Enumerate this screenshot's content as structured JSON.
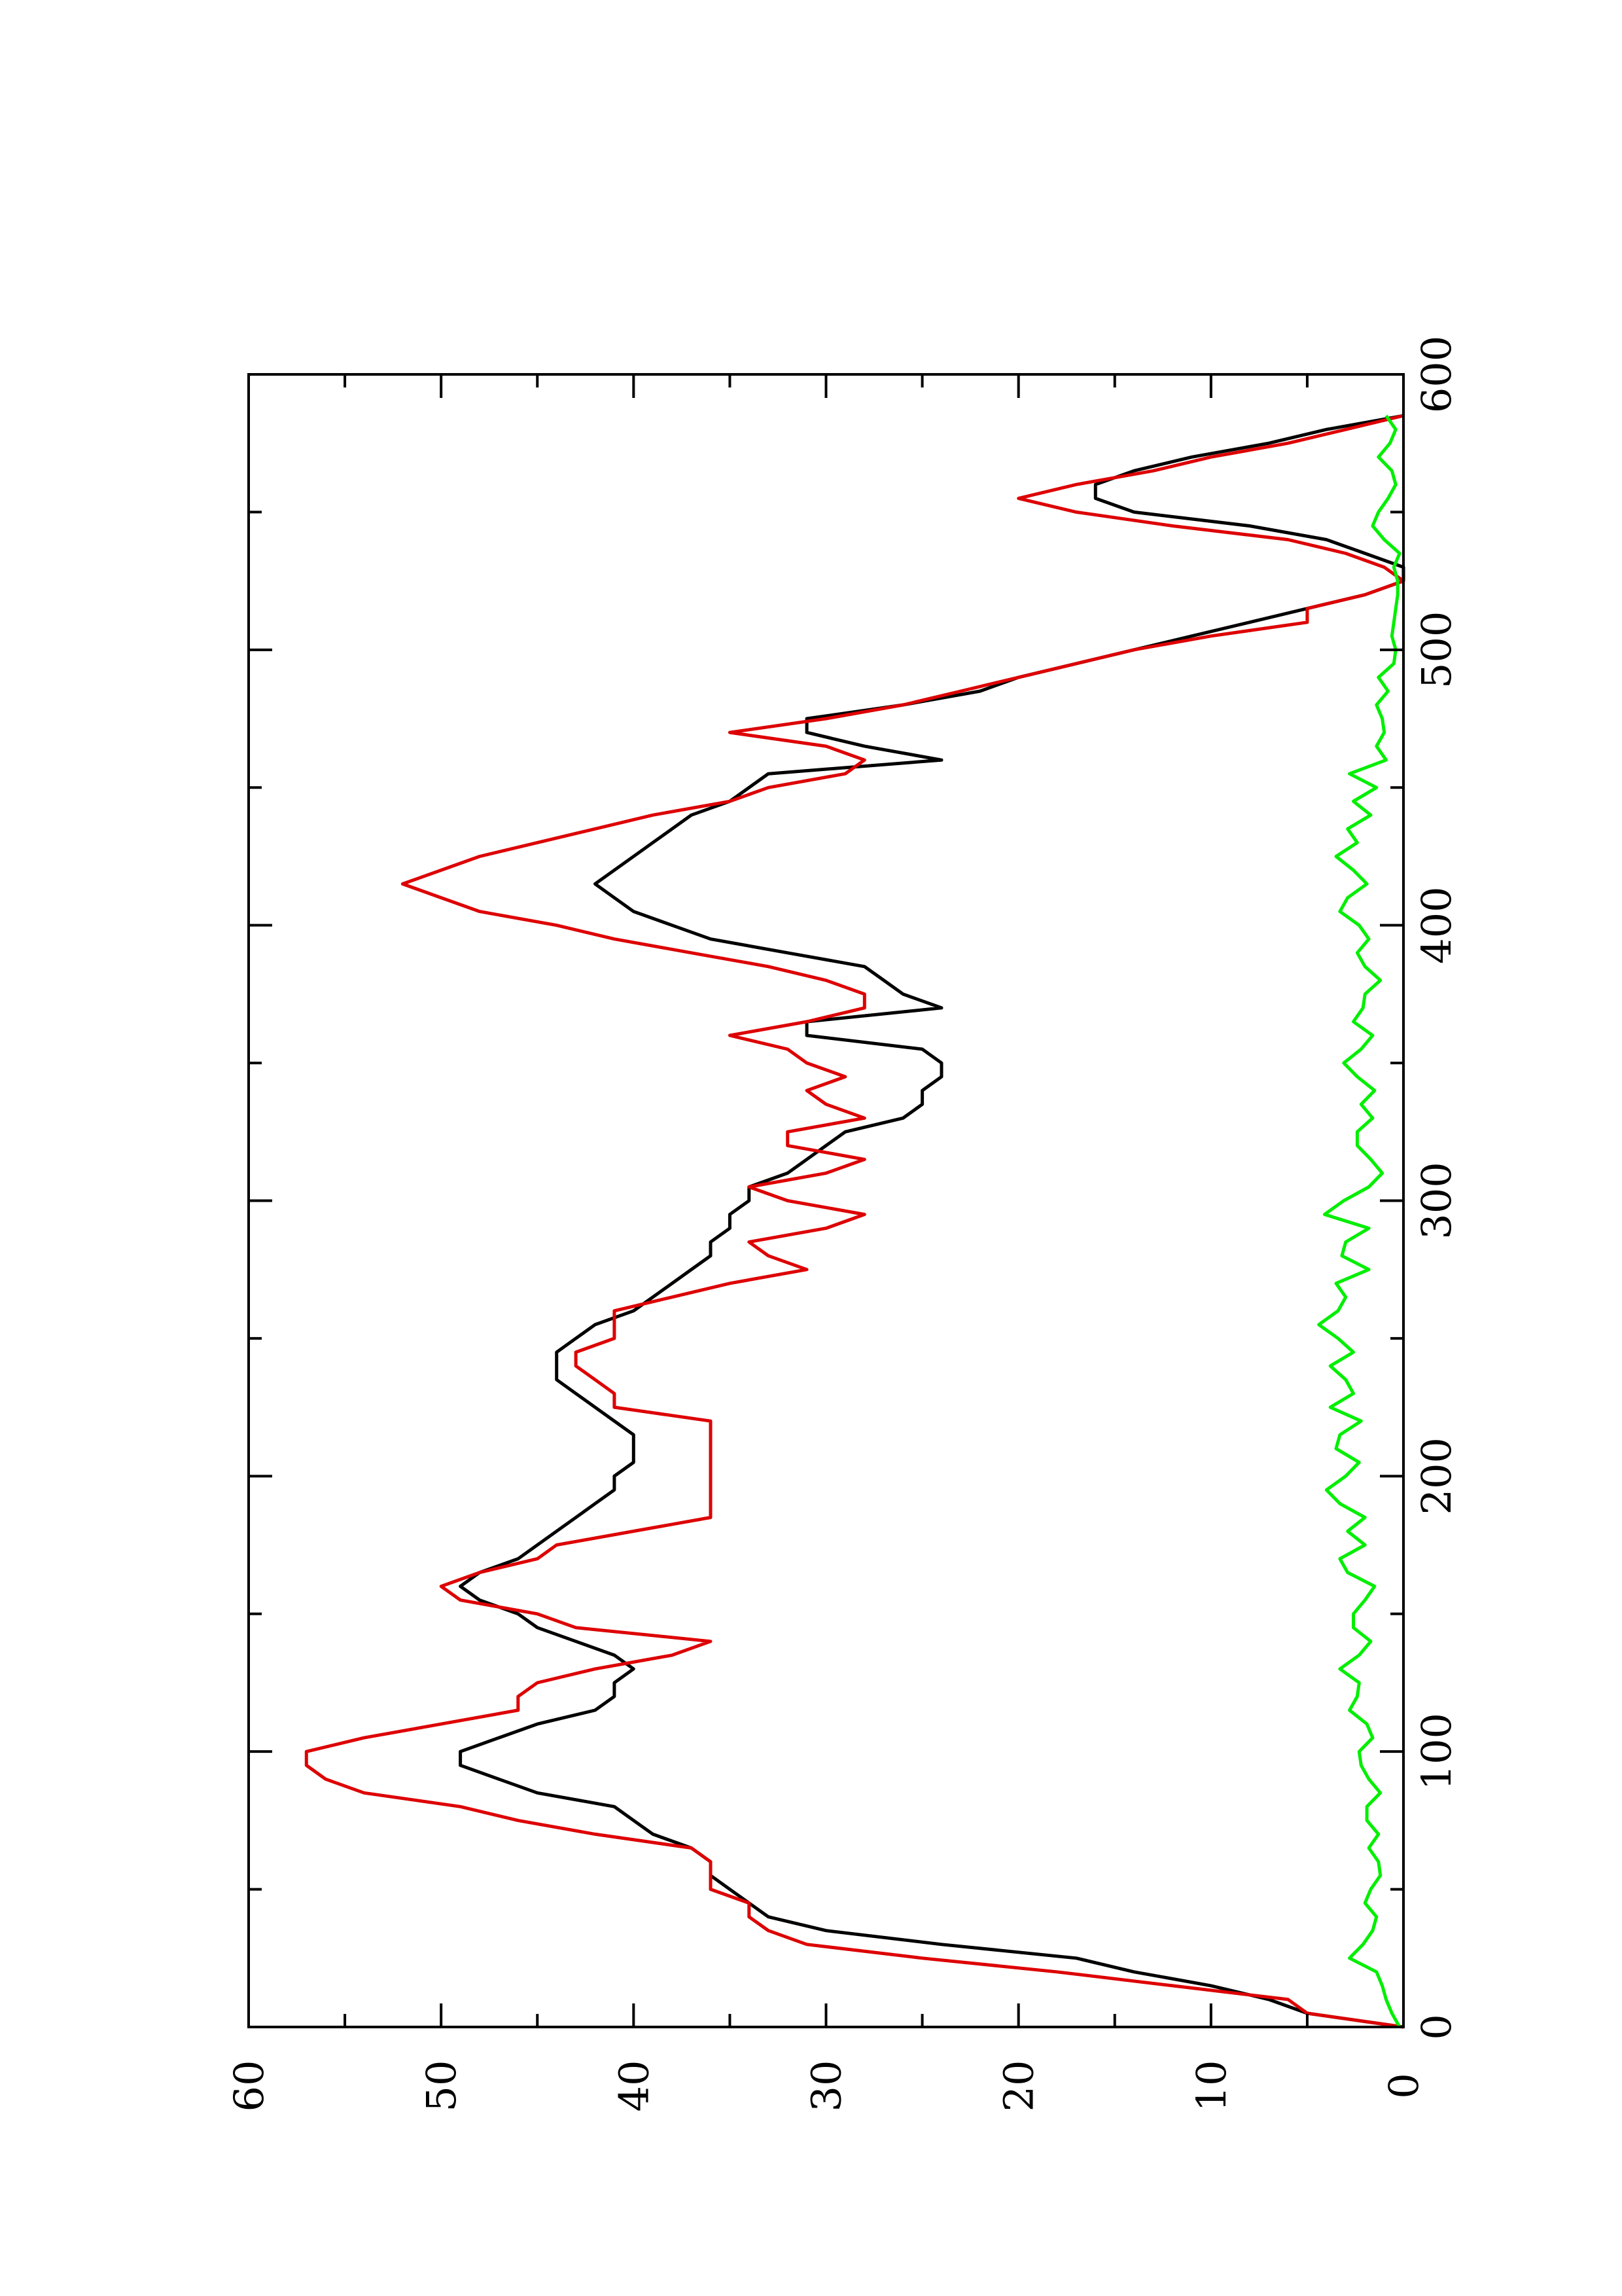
{
  "chart_data": {
    "type": "line",
    "title": "",
    "xlabel": "",
    "ylabel": "",
    "orientation": "rotated-90-ccw",
    "xlim": [
      0,
      600
    ],
    "ylim": [
      0,
      60
    ],
    "x_ticks": [
      0,
      100,
      200,
      300,
      400,
      500,
      600
    ],
    "x_tick_labels": [
      "0",
      "100",
      "200",
      "300",
      "400",
      "500",
      "600"
    ],
    "x_minor_ticks": [
      50,
      150,
      250,
      350,
      450,
      550
    ],
    "y_ticks": [
      0,
      10,
      20,
      30,
      40,
      50,
      60
    ],
    "y_tick_labels": [
      "0",
      "10",
      "20",
      "30",
      "40",
      "50",
      "60"
    ],
    "y_minor_ticks": [
      5,
      15,
      25,
      35,
      45,
      55
    ],
    "grid": false,
    "legend": "none",
    "series": [
      {
        "color": "#000000",
        "x": [
          0,
          5,
          10,
          15,
          20,
          25,
          30,
          35,
          40,
          45,
          50,
          55,
          60,
          65,
          70,
          75,
          80,
          85,
          90,
          95,
          100,
          105,
          110,
          115,
          120,
          125,
          130,
          135,
          140,
          145,
          150,
          155,
          160,
          165,
          170,
          175,
          180,
          185,
          190,
          195,
          200,
          205,
          210,
          215,
          220,
          225,
          230,
          235,
          240,
          245,
          250,
          255,
          260,
          265,
          270,
          275,
          280,
          285,
          290,
          295,
          300,
          305,
          310,
          315,
          320,
          325,
          330,
          335,
          340,
          345,
          350,
          355,
          360,
          365,
          370,
          375,
          380,
          385,
          390,
          395,
          400,
          405,
          410,
          415,
          420,
          425,
          430,
          435,
          440,
          445,
          450,
          455,
          460,
          465,
          470,
          475,
          480,
          485,
          490,
          495,
          500,
          505,
          510,
          515,
          520,
          525,
          530,
          535,
          540,
          545,
          550,
          555,
          560,
          565,
          570,
          575,
          580,
          585
        ],
        "y": [
          0,
          5,
          7,
          10,
          14,
          17,
          24,
          30,
          33,
          34,
          35,
          36,
          36,
          37,
          39,
          40,
          41,
          45,
          47,
          49,
          49,
          47,
          45,
          42,
          41,
          41,
          40,
          41,
          43,
          45,
          46,
          48,
          49,
          48,
          46,
          45,
          44,
          43,
          42,
          41,
          41,
          40,
          40,
          40,
          41,
          42,
          43,
          44,
          44,
          44,
          43,
          42,
          40,
          39,
          38,
          37,
          36,
          36,
          35,
          35,
          34,
          34,
          32,
          31,
          30,
          29,
          26,
          25,
          25,
          24,
          24,
          25,
          31,
          31,
          24,
          26,
          27,
          28,
          32,
          36,
          38,
          40,
          41,
          42,
          41,
          40,
          39,
          38,
          37,
          35,
          34,
          33,
          24,
          28,
          31,
          31,
          26,
          22,
          20,
          17,
          14,
          11,
          8,
          5,
          2,
          0,
          0,
          2,
          4,
          8,
          14,
          16,
          16,
          14,
          11,
          7,
          4,
          0
        ]
      },
      {
        "color": "#dd0000",
        "x": [
          0,
          5,
          10,
          15,
          20,
          25,
          30,
          35,
          40,
          45,
          50,
          55,
          60,
          65,
          70,
          75,
          80,
          85,
          90,
          95,
          100,
          105,
          110,
          115,
          120,
          125,
          130,
          135,
          140,
          145,
          150,
          155,
          160,
          165,
          170,
          175,
          180,
          185,
          190,
          195,
          200,
          205,
          210,
          215,
          220,
          225,
          230,
          235,
          240,
          245,
          250,
          255,
          260,
          265,
          270,
          275,
          280,
          285,
          290,
          295,
          300,
          305,
          310,
          315,
          320,
          325,
          330,
          335,
          340,
          345,
          350,
          355,
          360,
          365,
          370,
          375,
          380,
          385,
          390,
          395,
          400,
          405,
          410,
          415,
          420,
          425,
          430,
          435,
          440,
          445,
          450,
          455,
          460,
          465,
          470,
          475,
          480,
          485,
          490,
          495,
          500,
          505,
          510,
          515,
          520,
          525,
          530,
          535,
          540,
          545,
          550,
          555,
          560,
          565,
          570,
          575,
          580,
          585
        ],
        "y": [
          0,
          5,
          6,
          12,
          18,
          25,
          31,
          33,
          34,
          34,
          36,
          36,
          36,
          37,
          42,
          46,
          49,
          54,
          56,
          57,
          57,
          54,
          50,
          46,
          46,
          45,
          42,
          38,
          36,
          43,
          45,
          49,
          50,
          48,
          45,
          44,
          40,
          36,
          36,
          36,
          36,
          36,
          36,
          36,
          36,
          41,
          41,
          42,
          43,
          43,
          41,
          41,
          41,
          38,
          35,
          31,
          33,
          34,
          30,
          28,
          32,
          34,
          30,
          28,
          32,
          32,
          28,
          30,
          31,
          29,
          31,
          32,
          35,
          31,
          28,
          28,
          30,
          33,
          37,
          41,
          44,
          48,
          50,
          52,
          50,
          48,
          45,
          42,
          39,
          35,
          33,
          29,
          28,
          30,
          35,
          30,
          26,
          23,
          20,
          17,
          14,
          10,
          5,
          5,
          2,
          0,
          1,
          3,
          6,
          12,
          17,
          20,
          17,
          13,
          10,
          6,
          3,
          0
        ]
      },
      {
        "color": "#00ee00",
        "x": [
          0,
          5,
          10,
          15,
          20,
          25,
          30,
          35,
          40,
          45,
          50,
          55,
          60,
          65,
          70,
          75,
          80,
          85,
          90,
          95,
          100,
          105,
          110,
          115,
          120,
          125,
          130,
          135,
          140,
          145,
          150,
          155,
          160,
          165,
          170,
          175,
          180,
          185,
          190,
          195,
          200,
          205,
          210,
          215,
          220,
          225,
          230,
          235,
          240,
          245,
          250,
          255,
          260,
          265,
          270,
          275,
          280,
          285,
          290,
          295,
          300,
          305,
          310,
          315,
          320,
          325,
          330,
          335,
          340,
          345,
          350,
          355,
          360,
          365,
          370,
          375,
          380,
          385,
          390,
          395,
          400,
          405,
          410,
          415,
          420,
          425,
          430,
          435,
          440,
          445,
          450,
          455,
          460,
          465,
          470,
          475,
          480,
          485,
          490,
          495,
          500,
          505,
          510,
          515,
          520,
          525,
          530,
          535,
          540,
          545,
          550,
          555,
          560,
          565,
          570,
          575,
          580,
          585
        ],
        "y": [
          0.2,
          0.6,
          0.9,
          1.1,
          1.4,
          2.8,
          2.1,
          1.6,
          1.4,
          2.0,
          1.7,
          1.2,
          1.3,
          1.8,
          1.3,
          1.9,
          1.9,
          1.2,
          1.8,
          2.2,
          2.3,
          1.6,
          1.9,
          2.8,
          2.4,
          2.3,
          3.3,
          2.3,
          1.7,
          2.6,
          2.6,
          2.0,
          1.5,
          2.9,
          3.3,
          2.0,
          2.9,
          2.0,
          3.3,
          4.0,
          3.0,
          2.3,
          3.5,
          3.3,
          2.2,
          3.8,
          2.6,
          3.0,
          3.8,
          2.6,
          3.4,
          4.4,
          3.4,
          3.0,
          3.5,
          1.8,
          3.2,
          3.0,
          1.8,
          4.1,
          3.1,
          1.8,
          1.1,
          1.7,
          2.4,
          2.4,
          1.6,
          2.2,
          1.5,
          2.4,
          3.1,
          2.2,
          1.6,
          2.6,
          2.1,
          2.0,
          1.2,
          2.0,
          2.4,
          1.8,
          2.3,
          3.3,
          2.9,
          1.9,
          2.6,
          3.5,
          2.4,
          2.9,
          1.7,
          2.6,
          1.4,
          2.8,
          0.9,
          1.4,
          1.0,
          1.1,
          1.4,
          0.8,
          1.3,
          0.5,
          0.4,
          0.6,
          0.5,
          0.4,
          0.3,
          0.3,
          0.5,
          0.2,
          1.0,
          1.6,
          1.3,
          0.8,
          0.4,
          0.6,
          1.3,
          0.7,
          0.4,
          0.9
        ]
      }
    ]
  }
}
